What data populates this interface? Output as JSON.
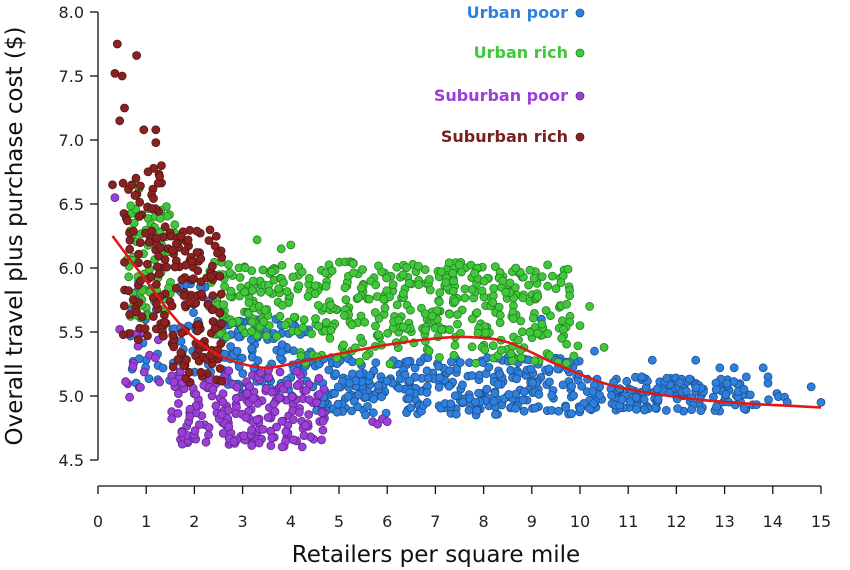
{
  "chart_data": {
    "type": "scatter",
    "title": "",
    "xlabel": "Retailers per square mile",
    "ylabel": "Overall travel plus purchase cost ($)",
    "xlim": [
      0,
      15
    ],
    "ylim": [
      4.5,
      8.0
    ],
    "x_ticks": [
      "0",
      "1",
      "2",
      "3",
      "4",
      "5",
      "6",
      "7",
      "8",
      "9",
      "10",
      "11",
      "12",
      "13",
      "14",
      "15"
    ],
    "y_ticks": [
      "4.5",
      "5.0",
      "5.5",
      "6.0",
      "6.5",
      "7.0",
      "7.5",
      "8.0"
    ],
    "legend_position": "top-right",
    "series": [
      {
        "name": "Urban poor",
        "color": "#2f80de",
        "regions": [
          {
            "x": [
              0.6,
              2.5
            ],
            "y": [
              5.1,
              5.9
            ],
            "n": 60
          },
          {
            "x": [
              2.5,
              4.5
            ],
            "y": [
              5.0,
              5.6
            ],
            "n": 110
          },
          {
            "x": [
              4.5,
              10.0
            ],
            "y": [
              4.85,
              5.3
            ],
            "n": 320
          },
          {
            "x": [
              10.0,
              13.5
            ],
            "y": [
              4.88,
              5.15
            ],
            "n": 160
          },
          {
            "x": [
              13.5,
              14.8
            ],
            "y": [
              4.92,
              5.1
            ],
            "n": 8
          }
        ],
        "points": [
          [
            9.2,
            5.6
          ],
          [
            10.3,
            5.35
          ],
          [
            11.5,
            5.28
          ],
          [
            12.4,
            5.28
          ],
          [
            12.9,
            5.22
          ],
          [
            13.2,
            5.22
          ],
          [
            13.8,
            5.22
          ],
          [
            13.9,
            5.15
          ],
          [
            13.9,
            5.1
          ],
          [
            14.3,
            4.95
          ],
          [
            15.0,
            4.95
          ]
        ]
      },
      {
        "name": "Urban rich",
        "color": "#3fc93a",
        "regions": [
          {
            "x": [
              0.6,
              1.6
            ],
            "y": [
              5.6,
              6.5
            ],
            "n": 70
          },
          {
            "x": [
              2.3,
              9.8
            ],
            "y": [
              5.45,
              6.05
            ],
            "n": 440
          },
          {
            "x": [
              4.0,
              10.0
            ],
            "y": [
              5.25,
              5.45
            ],
            "n": 60
          }
        ],
        "points": [
          [
            0.8,
            6.65
          ],
          [
            0.85,
            6.62
          ],
          [
            1.3,
            6.45
          ],
          [
            3.3,
            6.22
          ],
          [
            3.8,
            6.15
          ],
          [
            4.0,
            6.18
          ],
          [
            10.5,
            5.38
          ],
          [
            10.2,
            5.7
          ],
          [
            10.0,
            5.55
          ]
        ]
      },
      {
        "name": "Suburban poor",
        "color": "#9a3fd8",
        "regions": [
          {
            "x": [
              0.5,
              1.3
            ],
            "y": [
              4.95,
              5.55
            ],
            "n": 15
          },
          {
            "x": [
              1.5,
              4.7
            ],
            "y": [
              4.6,
              5.2
            ],
            "n": 210
          }
        ],
        "points": [
          [
            0.35,
            6.55
          ],
          [
            0.45,
            5.52
          ],
          [
            5.7,
            4.8
          ],
          [
            5.8,
            4.78
          ],
          [
            5.9,
            4.82
          ],
          [
            6.0,
            4.8
          ]
        ]
      },
      {
        "name": "Suburban rich",
        "color": "#8b2222",
        "regions": [
          {
            "x": [
              0.5,
              1.5
            ],
            "y": [
              5.4,
              6.85
            ],
            "n": 90
          },
          {
            "x": [
              1.5,
              2.6
            ],
            "y": [
              5.1,
              6.3
            ],
            "n": 120
          }
        ],
        "points": [
          [
            0.4,
            7.75
          ],
          [
            0.35,
            7.52
          ],
          [
            0.5,
            7.5
          ],
          [
            0.8,
            7.66
          ],
          [
            0.55,
            7.25
          ],
          [
            0.45,
            7.15
          ],
          [
            0.95,
            7.08
          ],
          [
            1.2,
            7.08
          ],
          [
            1.2,
            6.98
          ],
          [
            0.3,
            6.65
          ]
        ]
      }
    ],
    "trend_line": {
      "color": "#e01818",
      "x": [
        0.3,
        0.7,
        1.0,
        1.5,
        2.0,
        2.5,
        3.0,
        3.5,
        4.0,
        5.0,
        6.0,
        7.0,
        7.7,
        8.5,
        9.5,
        10.5,
        11.5,
        12.5,
        13.5,
        14.5,
        15.0
      ],
      "y": [
        6.25,
        6.05,
        5.9,
        5.65,
        5.45,
        5.32,
        5.25,
        5.22,
        5.25,
        5.33,
        5.4,
        5.45,
        5.46,
        5.42,
        5.25,
        5.1,
        5.02,
        4.97,
        4.94,
        4.92,
        4.91
      ]
    }
  }
}
